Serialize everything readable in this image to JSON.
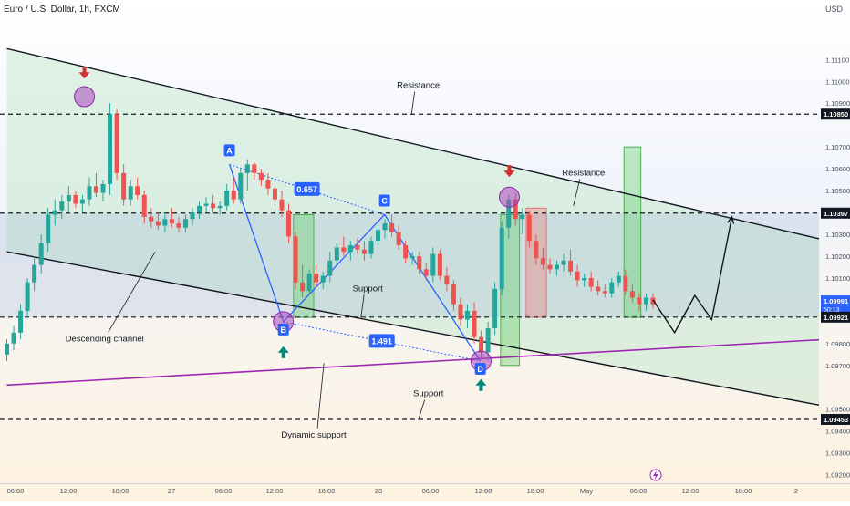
{
  "header": {
    "symbol_title": "Euro / U.S. Dollar, 1h, FXCM",
    "currency": "USD"
  },
  "chart_data": {
    "type": "candlestick",
    "title": "Euro / U.S. Dollar, 1h, FXCM",
    "ylabel": "USD",
    "ylim": [
      1.0919,
      1.1131
    ],
    "y_ticks": [
      1.111,
      1.11,
      1.109,
      1.107,
      1.106,
      1.105,
      1.103,
      1.102,
      1.101,
      1.098,
      1.097,
      1.095,
      1.094,
      1.093,
      1.092
    ],
    "x_tick_labels": [
      "06:00",
      "12:00",
      "18:00",
      "27",
      "06:00",
      "12:00",
      "18:00",
      "28",
      "06:00",
      "12:00",
      "18:00",
      "May",
      "06:00",
      "12:00",
      "18:00",
      "2"
    ],
    "price_badges": [
      {
        "label": "1.10850",
        "value": 1.1085,
        "style": "level"
      },
      {
        "label": "1.10397",
        "value": 1.10397,
        "style": "level"
      },
      {
        "label": "1.09991",
        "value": 1.09991,
        "style": "current",
        "sublabel": "50:13"
      },
      {
        "label": "1.09921",
        "value": 1.09921,
        "style": "level"
      },
      {
        "label": "1.09453",
        "value": 1.09453,
        "style": "level"
      }
    ],
    "horizontal_levels": [
      1.1085,
      1.10397,
      1.09921,
      1.09453
    ],
    "candles_ohlc": [
      [
        1.0975,
        1.0982,
        1.0972,
        1.098
      ],
      [
        1.098,
        1.0988,
        1.0977,
        1.0985
      ],
      [
        1.0985,
        1.0998,
        1.0982,
        1.0995
      ],
      [
        1.0995,
        1.101,
        1.0992,
        1.1008
      ],
      [
        1.1008,
        1.102,
        1.1004,
        1.1016
      ],
      [
        1.1016,
        1.103,
        1.1012,
        1.1026
      ],
      [
        1.1026,
        1.1042,
        1.1022,
        1.1039
      ],
      [
        1.1039,
        1.1046,
        1.1034,
        1.1041
      ],
      [
        1.1041,
        1.1048,
        1.1037,
        1.1045
      ],
      [
        1.1045,
        1.1052,
        1.104,
        1.1048
      ],
      [
        1.1048,
        1.105,
        1.1042,
        1.1044
      ],
      [
        1.1044,
        1.1048,
        1.104,
        1.1046
      ],
      [
        1.1046,
        1.1056,
        1.1043,
        1.1052
      ],
      [
        1.1052,
        1.1058,
        1.1047,
        1.1049
      ],
      [
        1.1049,
        1.1055,
        1.1045,
        1.1053
      ],
      [
        1.1053,
        1.109,
        1.1048,
        1.1085
      ],
      [
        1.1085,
        1.1087,
        1.1055,
        1.1058
      ],
      [
        1.1058,
        1.1062,
        1.1043,
        1.1046
      ],
      [
        1.1046,
        1.1055,
        1.1043,
        1.1052
      ],
      [
        1.1052,
        1.1056,
        1.1046,
        1.1048
      ],
      [
        1.1048,
        1.105,
        1.1035,
        1.1038
      ],
      [
        1.1038,
        1.1042,
        1.1033,
        1.1036
      ],
      [
        1.1036,
        1.104,
        1.1032,
        1.1034
      ],
      [
        1.1034,
        1.1039,
        1.1031,
        1.1037
      ],
      [
        1.1037,
        1.1042,
        1.1033,
        1.1035
      ],
      [
        1.1035,
        1.1038,
        1.1031,
        1.1033
      ],
      [
        1.1033,
        1.1039,
        1.1031,
        1.1037
      ],
      [
        1.1037,
        1.1042,
        1.1034,
        1.104
      ],
      [
        1.104,
        1.1045,
        1.1037,
        1.1043
      ],
      [
        1.1043,
        1.1047,
        1.104,
        1.1044
      ],
      [
        1.1044,
        1.1048,
        1.104,
        1.1042
      ],
      [
        1.1042,
        1.1045,
        1.1039,
        1.1043
      ],
      [
        1.1043,
        1.1053,
        1.1041,
        1.105
      ],
      [
        1.105,
        1.1056,
        1.1044,
        1.1046
      ],
      [
        1.1046,
        1.106,
        1.1044,
        1.1058
      ],
      [
        1.1058,
        1.1064,
        1.105,
        1.1062
      ],
      [
        1.1062,
        1.1063,
        1.1055,
        1.1058
      ],
      [
        1.1058,
        1.106,
        1.1052,
        1.1055
      ],
      [
        1.1055,
        1.1058,
        1.1048,
        1.1051
      ],
      [
        1.1051,
        1.1054,
        1.1043,
        1.1046
      ],
      [
        1.1046,
        1.105,
        1.1038,
        1.1041
      ],
      [
        1.1041,
        1.1044,
        1.1026,
        1.1029
      ],
      [
        1.1029,
        1.1031,
        1.1005,
        1.1008
      ],
      [
        1.1008,
        1.1016,
        1.1001,
        1.1004
      ],
      [
        1.1004,
        1.1014,
        1.1002,
        1.1012
      ],
      [
        1.1012,
        1.1016,
        1.1006,
        1.1008
      ],
      [
        1.1008,
        1.1013,
        1.1005,
        1.1011
      ],
      [
        1.1011,
        1.1022,
        1.1008,
        1.1018
      ],
      [
        1.1018,
        1.1026,
        1.1016,
        1.1024
      ],
      [
        1.1024,
        1.1029,
        1.102,
        1.1022
      ],
      [
        1.1022,
        1.1027,
        1.1018,
        1.1025
      ],
      [
        1.1025,
        1.1028,
        1.1021,
        1.1023
      ],
      [
        1.1023,
        1.1027,
        1.1018,
        1.1021
      ],
      [
        1.1021,
        1.1029,
        1.1019,
        1.1027
      ],
      [
        1.1027,
        1.1034,
        1.1025,
        1.1032
      ],
      [
        1.1032,
        1.1037,
        1.1028,
        1.1035
      ],
      [
        1.1035,
        1.1039,
        1.1029,
        1.1031
      ],
      [
        1.1031,
        1.1034,
        1.1023,
        1.1025
      ],
      [
        1.1025,
        1.1027,
        1.1017,
        1.1019
      ],
      [
        1.1019,
        1.1022,
        1.1016,
        1.102
      ],
      [
        1.102,
        1.1022,
        1.1012,
        1.1014
      ],
      [
        1.1014,
        1.1017,
        1.1009,
        1.1011
      ],
      [
        1.1011,
        1.1024,
        1.1008,
        1.1021
      ],
      [
        1.1021,
        1.1023,
        1.1009,
        1.1011
      ],
      [
        1.1011,
        1.1015,
        1.1004,
        1.1007
      ],
      [
        1.1007,
        1.1009,
        1.0995,
        1.0998
      ],
      [
        1.0998,
        1.1001,
        1.0988,
        1.0991
      ],
      [
        1.0991,
        1.0998,
        1.0987,
        1.0995
      ],
      [
        1.0995,
        1.0999,
        1.098,
        1.0983
      ],
      [
        1.0983,
        1.0986,
        1.0973,
        1.0976
      ],
      [
        1.0976,
        1.099,
        1.0972,
        1.0987
      ],
      [
        1.0987,
        1.1008,
        1.0984,
        1.1005
      ],
      [
        1.1005,
        1.1036,
        1.1002,
        1.1033
      ],
      [
        1.1033,
        1.1048,
        1.1028,
        1.1046
      ],
      [
        1.1046,
        1.1049,
        1.1034,
        1.1037
      ],
      [
        1.1037,
        1.1042,
        1.103,
        1.1039
      ],
      [
        1.1039,
        1.1041,
        1.1024,
        1.1027
      ],
      [
        1.1027,
        1.103,
        1.1016,
        1.1019
      ],
      [
        1.1019,
        1.1024,
        1.1014,
        1.1016
      ],
      [
        1.1016,
        1.1019,
        1.1012,
        1.1014
      ],
      [
        1.1014,
        1.1018,
        1.1011,
        1.1016
      ],
      [
        1.1016,
        1.1021,
        1.1013,
        1.1018
      ],
      [
        1.1018,
        1.1023,
        1.1011,
        1.1013
      ],
      [
        1.1013,
        1.1016,
        1.1006,
        1.1009
      ],
      [
        1.1009,
        1.1012,
        1.1006,
        1.101
      ],
      [
        1.101,
        1.1013,
        1.1004,
        1.1006
      ],
      [
        1.1006,
        1.1009,
        1.1002,
        1.1004
      ],
      [
        1.1004,
        1.1007,
        1.1001,
        1.1003
      ],
      [
        1.1003,
        1.101,
        1.1001,
        1.1008
      ],
      [
        1.1008,
        1.1013,
        1.1006,
        1.1011
      ],
      [
        1.1011,
        1.1014,
        1.1002,
        1.1004
      ],
      [
        1.1004,
        1.1007,
        1.0999,
        1.1001
      ],
      [
        1.1001,
        1.1003,
        1.0995,
        1.0998
      ],
      [
        1.0998,
        1.1003,
        1.0995,
        1.1001
      ],
      [
        1.1001,
        1.1003,
        1.0996,
        1.0998
      ]
    ],
    "candle_time_span": [
      -1,
      94.8
    ],
    "channel": {
      "label": "Descending channel",
      "upper_line": [
        [
          -1,
          1.1115
        ],
        [
          141.5,
          1.1012
        ]
      ],
      "lower_line": [
        [
          -1,
          1.1022
        ],
        [
          141.5,
          1.0939
        ]
      ],
      "fill": "#c8ead0"
    },
    "harmonic_pattern": {
      "points": [
        {
          "label": "A",
          "x": 32,
          "y": 1.1062
        },
        {
          "label": "B",
          "x": 40,
          "y": 1.099
        },
        {
          "label": "C",
          "x": 55,
          "y": 1.1039
        },
        {
          "label": "D",
          "x": 69.2,
          "y": 1.0972
        }
      ],
      "ratios": [
        {
          "label": "0.657",
          "between": [
            "A",
            "C"
          ]
        },
        {
          "label": "1.491",
          "between": [
            "B",
            "D"
          ]
        }
      ],
      "color": "#2962ff"
    },
    "dynamic_support": {
      "label": "Dynamic support",
      "line": [
        [
          -1,
          1.0961
        ],
        [
          150,
          1.0987
        ]
      ],
      "color": "#9c27b0"
    },
    "projection_path": [
      [
        94.8,
        1.1
      ],
      [
        98,
        1.0985
      ],
      [
        101,
        1.1002
      ],
      [
        103.5,
        1.0991
      ],
      [
        106.5,
        1.1038
      ]
    ],
    "signal_boxes": [
      {
        "x": [
          41.5,
          44.5
        ],
        "y": [
          1.0992,
          1.1039
        ],
        "color": "green"
      },
      {
        "x": [
          72.2,
          75.0
        ],
        "y": [
          1.097,
          1.1039
        ],
        "color": "green"
      },
      {
        "x": [
          76.0,
          79.0
        ],
        "y": [
          1.0992,
          1.1042
        ],
        "color": "red"
      },
      {
        "x": [
          90.5,
          93.0
        ],
        "y": [
          1.0992,
          1.107
        ],
        "color": "green"
      }
    ],
    "highlight_circles": [
      [
        10.5,
        1.1093
      ],
      [
        40,
        1.099
      ],
      [
        73.5,
        1.1047
      ],
      [
        69.3,
        1.0972
      ]
    ],
    "arrow_markers": [
      {
        "x": 10.5,
        "y": 1.11,
        "direction": "down",
        "color": "red"
      },
      {
        "x": 73.5,
        "y": 1.1055,
        "direction": "down",
        "color": "red"
      },
      {
        "x": 40,
        "y": 1.098,
        "direction": "up",
        "color": "green"
      },
      {
        "x": 69.3,
        "y": 1.0965,
        "direction": "up",
        "color": "green"
      }
    ],
    "annotations": [
      {
        "text": "Resistance",
        "x": 60,
        "y": 1.1097,
        "pointer": [
          59,
          1.1085
        ]
      },
      {
        "text": "Resistance",
        "x": 84.5,
        "y": 1.1057,
        "pointer": [
          83,
          1.1043
        ]
      },
      {
        "text": "Support",
        "x": 52.5,
        "y": 1.1004,
        "pointer": [
          51.5,
          1.0992
        ]
      },
      {
        "text": "Support",
        "x": 61.5,
        "y": 1.0956,
        "pointer": [
          60,
          1.0945
        ]
      },
      {
        "text": "Descending channel",
        "x": 13.5,
        "y": 1.0981,
        "pointer": [
          21,
          1.1022
        ]
      },
      {
        "text": "Dynamic support",
        "x": 44.5,
        "y": 1.0937,
        "pointer": [
          46,
          1.0971
        ]
      }
    ],
    "colors": {
      "up": "#26a69a",
      "down": "#ef5350",
      "level_line": "#131722",
      "channel_line": "#131722"
    }
  }
}
